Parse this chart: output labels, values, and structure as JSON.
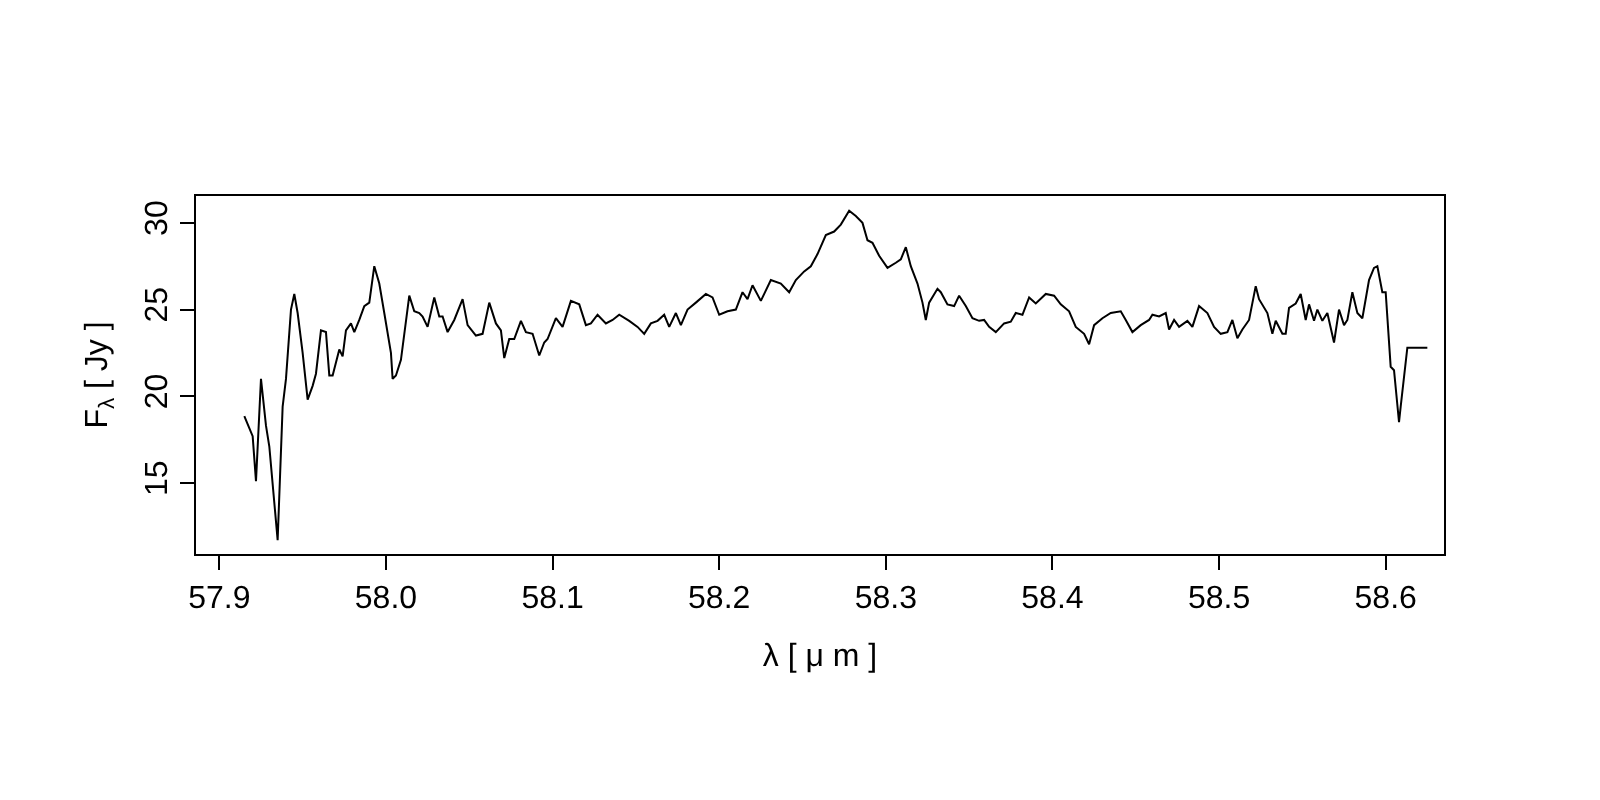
{
  "chart_data": {
    "type": "line",
    "xlabel": "λ [ μ m ]",
    "ylabel": "F$_{λ}$ [ Jy ]",
    "xlim": [
      57.886,
      58.635
    ],
    "ylim": [
      10.9,
      31.55
    ],
    "xticks": [
      {
        "value": 57.9,
        "label": "57.9"
      },
      {
        "value": 58.0,
        "label": "58.0"
      },
      {
        "value": 58.1,
        "label": "58.1"
      },
      {
        "value": 58.2,
        "label": "58.2"
      },
      {
        "value": 58.3,
        "label": "58.3"
      },
      {
        "value": 58.4,
        "label": "58.4"
      },
      {
        "value": 58.5,
        "label": "58.5"
      },
      {
        "value": 58.6,
        "label": "58.6"
      }
    ],
    "yticks": [
      15,
      20,
      25,
      30
    ],
    "marker": "none",
    "line_style": "solid",
    "series": [
      {
        "color": "#000000",
        "x": [
          57.915,
          57.92,
          57.922,
          57.925,
          57.928,
          57.93,
          57.935,
          57.938,
          57.94,
          57.943,
          57.945,
          57.947,
          57.95,
          57.953,
          57.956,
          57.958,
          57.961,
          57.964,
          57.966,
          57.968,
          57.972,
          57.974,
          57.976,
          57.979,
          57.981,
          57.984,
          57.987,
          57.99,
          57.993,
          57.996,
          57.999,
          58.003,
          58.004,
          58.006,
          58.009,
          58.014,
          58.017,
          58.02,
          58.022,
          58.025,
          58.029,
          58.032,
          58.034,
          58.037,
          58.041,
          58.046,
          58.049,
          58.054,
          58.058,
          58.062,
          58.066,
          58.069,
          58.071,
          58.074,
          58.077,
          58.081,
          58.084,
          58.088,
          58.092,
          58.095,
          58.097,
          58.102,
          58.106,
          58.111,
          58.116,
          58.12,
          58.123,
          58.127,
          58.132,
          58.136,
          58.14,
          58.146,
          58.151,
          58.155,
          58.159,
          58.163,
          58.167,
          58.17,
          58.174,
          58.177,
          58.181,
          58.186,
          58.192,
          58.196,
          58.2,
          58.205,
          58.21,
          58.214,
          58.217,
          58.22,
          58.225,
          58.231,
          58.237,
          58.242,
          58.246,
          58.251,
          58.255,
          58.259,
          58.264,
          58.269,
          58.273,
          58.278,
          58.282,
          58.286,
          58.289,
          58.292,
          58.296,
          58.301,
          58.306,
          58.309,
          58.312,
          58.315,
          58.319,
          58.322,
          58.324,
          58.326,
          58.331,
          58.333,
          58.337,
          58.341,
          58.344,
          58.348,
          58.352,
          58.356,
          58.359,
          58.362,
          58.366,
          58.371,
          58.375,
          58.378,
          58.382,
          58.386,
          58.39,
          58.396,
          58.401,
          58.405,
          58.41,
          58.414,
          58.419,
          58.422,
          58.425,
          58.43,
          58.435,
          58.441,
          58.444,
          58.448,
          58.453,
          58.458,
          58.46,
          58.464,
          58.468,
          58.47,
          58.473,
          58.476,
          58.481,
          58.484,
          58.488,
          58.493,
          58.497,
          58.501,
          58.505,
          58.508,
          58.511,
          58.514,
          58.518,
          58.522,
          58.524,
          58.529,
          58.532,
          58.534,
          58.538,
          58.54,
          58.542,
          58.546,
          58.549,
          58.552,
          58.554,
          58.557,
          58.559,
          58.562,
          58.565,
          58.569,
          58.572,
          58.575,
          58.577,
          58.58,
          58.583,
          58.586,
          58.59,
          58.593,
          58.595,
          58.598,
          58.6,
          58.603,
          58.605,
          58.608,
          58.609,
          58.613,
          58.625
        ],
        "values": [
          18.85,
          17.7,
          15.1,
          21.0,
          18.3,
          17.1,
          11.7,
          19.4,
          21.0,
          25.0,
          25.9,
          24.8,
          22.5,
          19.8,
          20.6,
          21.3,
          23.8,
          23.7,
          21.2,
          21.2,
          22.7,
          22.3,
          23.8,
          24.2,
          23.7,
          24.4,
          25.2,
          25.4,
          27.5,
          26.5,
          24.8,
          22.5,
          21.0,
          21.2,
          22.1,
          25.8,
          24.9,
          24.8,
          24.6,
          24.0,
          25.7,
          24.6,
          24.6,
          23.7,
          24.4,
          25.6,
          24.1,
          23.5,
          23.6,
          25.4,
          24.2,
          23.8,
          22.2,
          23.3,
          23.3,
          24.35,
          23.7,
          23.6,
          22.35,
          23.1,
          23.3,
          24.5,
          24.0,
          25.5,
          25.3,
          24.1,
          24.2,
          24.7,
          24.2,
          24.4,
          24.7,
          24.35,
          24.0,
          23.6,
          24.2,
          24.35,
          24.7,
          24.0,
          24.8,
          24.1,
          25.0,
          25.4,
          25.9,
          25.7,
          24.7,
          24.9,
          25.0,
          26.0,
          25.6,
          26.4,
          25.5,
          26.7,
          26.5,
          26.0,
          26.7,
          27.2,
          27.5,
          28.2,
          29.3,
          29.5,
          29.9,
          30.7,
          30.4,
          30.0,
          29.0,
          28.85,
          28.1,
          27.4,
          27.7,
          27.9,
          28.6,
          27.5,
          26.5,
          25.4,
          24.4,
          25.4,
          26.2,
          26.0,
          25.3,
          25.2,
          25.8,
          25.2,
          24.5,
          24.35,
          24.4,
          24.0,
          23.7,
          24.2,
          24.3,
          24.8,
          24.7,
          25.7,
          25.35,
          25.9,
          25.8,
          25.3,
          24.9,
          24.0,
          23.6,
          23.0,
          24.1,
          24.5,
          24.8,
          24.9,
          24.4,
          23.7,
          24.1,
          24.4,
          24.7,
          24.6,
          24.8,
          23.85,
          24.4,
          24.0,
          24.35,
          24.0,
          25.2,
          24.8,
          24.0,
          23.6,
          23.7,
          24.4,
          23.35,
          23.85,
          24.4,
          26.35,
          25.6,
          24.8,
          23.6,
          24.35,
          23.6,
          23.6,
          25.1,
          25.35,
          25.9,
          24.4,
          25.3,
          24.35,
          25.0,
          24.35,
          24.8,
          23.1,
          25.0,
          24.1,
          24.4,
          26.0,
          24.8,
          24.5,
          26.7,
          27.4,
          27.5,
          26.0,
          26.0,
          21.7,
          21.5,
          18.5,
          19.4,
          22.8,
          22.8
        ]
      }
    ]
  }
}
